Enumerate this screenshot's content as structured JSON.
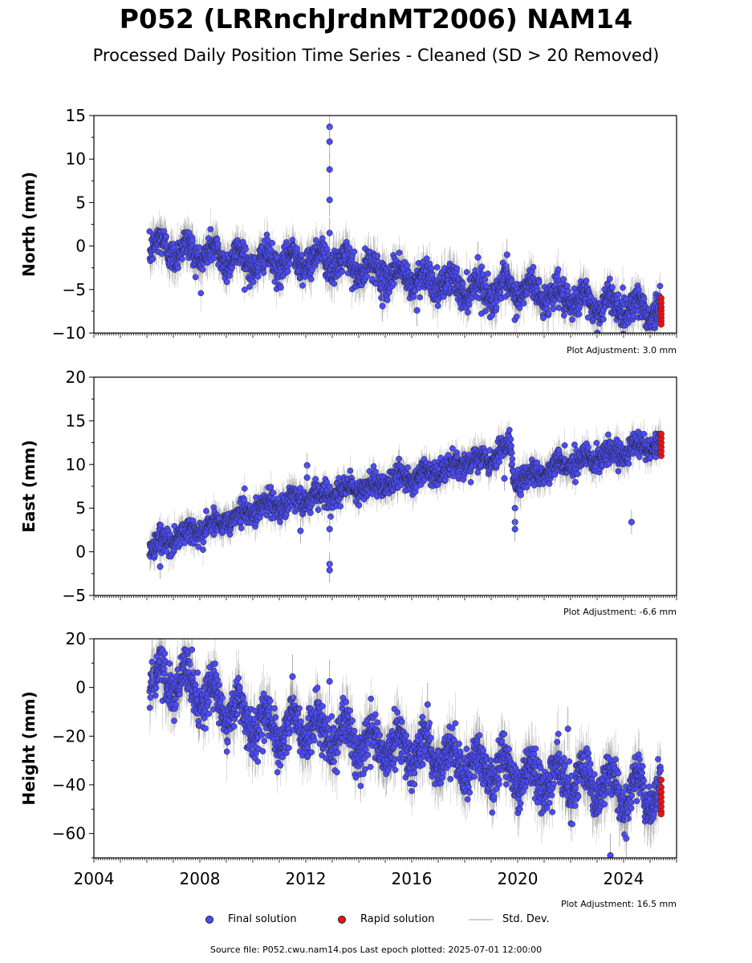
{
  "title": "P052 (LRRnchJrdnMT2006) NAM14",
  "subtitle": "Processed Daily Position Time Series - Cleaned (SD > 20 Removed)",
  "footer": "Source file: P052.cwu.nam14.pos  Last epoch plotted: 2025-07-01 12:00:00",
  "legend": {
    "final": "Final solution",
    "rapid": "Rapid solution",
    "std": "Std. Dev."
  },
  "colors": {
    "final": "#4b4bf5",
    "rapid": "#ee1111",
    "std": "#c8c8c8",
    "edge": "#222222"
  },
  "chart_data": [
    {
      "type": "scatter",
      "ylabel": "North (mm)",
      "ylim": [
        -10,
        15
      ],
      "yticks": [
        -10,
        -5,
        0,
        5,
        10,
        15
      ],
      "xlim": [
        2004.0,
        2026.0
      ],
      "adjustment": "Plot Adjustment: 3.0 mm",
      "trend": [
        [
          2006.1,
          0.0
        ],
        [
          2007.0,
          -0.3
        ],
        [
          2008.0,
          -0.8
        ],
        [
          2009.0,
          -1.2
        ],
        [
          2010.0,
          -1.8
        ],
        [
          2011.0,
          -1.9
        ],
        [
          2012.0,
          -1.5
        ],
        [
          2012.6,
          -1.4
        ],
        [
          2013.0,
          -1.7
        ],
        [
          2014.0,
          -2.6
        ],
        [
          2015.0,
          -3.2
        ],
        [
          2016.0,
          -3.6
        ],
        [
          2017.0,
          -4.2
        ],
        [
          2018.0,
          -4.8
        ],
        [
          2019.0,
          -5.1
        ],
        [
          2020.0,
          -5.0
        ],
        [
          2021.0,
          -5.4
        ],
        [
          2022.0,
          -6.2
        ],
        [
          2023.0,
          -6.6
        ],
        [
          2024.0,
          -6.9
        ],
        [
          2025.4,
          -7.4
        ]
      ],
      "seasonal_amp": 1.0,
      "noise": 0.9,
      "outliers": [
        [
          2012.9,
          13.7
        ],
        [
          2012.9,
          12.0
        ],
        [
          2012.9,
          8.8
        ],
        [
          2012.9,
          5.3
        ],
        [
          2012.9,
          1.5
        ],
        [
          2019.6,
          -1.0
        ],
        [
          2018.5,
          -1.3
        ],
        [
          2016.2,
          -7.4
        ],
        [
          2014.9,
          -6.9
        ]
      ],
      "rapid": [
        [
          2025.42,
          -6.0
        ],
        [
          2025.42,
          -6.5
        ],
        [
          2025.42,
          -7.0
        ],
        [
          2025.42,
          -7.4
        ],
        [
          2025.42,
          -7.8
        ],
        [
          2025.42,
          -8.2
        ],
        [
          2025.42,
          -8.6
        ],
        [
          2025.42,
          -9.0
        ]
      ]
    },
    {
      "type": "scatter",
      "ylabel": "East (mm)",
      "ylim": [
        -5,
        20
      ],
      "yticks": [
        -5,
        0,
        5,
        10,
        15,
        20
      ],
      "xlim": [
        2004.0,
        2026.0
      ],
      "adjustment": "Plot Adjustment: -6.6 mm",
      "trend": [
        [
          2006.1,
          0.5
        ],
        [
          2007.0,
          1.5
        ],
        [
          2008.0,
          2.6
        ],
        [
          2009.0,
          3.6
        ],
        [
          2010.0,
          4.8
        ],
        [
          2011.0,
          5.5
        ],
        [
          2012.0,
          6.0
        ],
        [
          2013.0,
          6.6
        ],
        [
          2014.0,
          7.3
        ],
        [
          2015.0,
          7.9
        ],
        [
          2016.0,
          8.5
        ],
        [
          2017.0,
          9.3
        ],
        [
          2018.0,
          10.0
        ],
        [
          2019.0,
          11.0
        ],
        [
          2019.75,
          12.0
        ],
        [
          2019.85,
          8.2
        ],
        [
          2020.5,
          8.6
        ],
        [
          2021.0,
          9.3
        ],
        [
          2022.0,
          10.2
        ],
        [
          2023.0,
          10.8
        ],
        [
          2024.0,
          11.5
        ],
        [
          2025.4,
          12.3
        ]
      ],
      "seasonal_amp": 0.5,
      "noise": 0.7,
      "outliers": [
        [
          2012.05,
          9.9
        ],
        [
          2012.05,
          8.5
        ],
        [
          2011.8,
          2.4
        ],
        [
          2012.9,
          -1.4
        ],
        [
          2012.9,
          -2.1
        ],
        [
          2012.9,
          2.6
        ],
        [
          2019.9,
          5.0
        ],
        [
          2019.9,
          3.4
        ],
        [
          2019.9,
          2.6
        ],
        [
          2024.3,
          3.4
        ],
        [
          2006.5,
          -1.7
        ],
        [
          2019.5,
          8.4
        ]
      ],
      "rapid": [
        [
          2025.42,
          11.0
        ],
        [
          2025.42,
          11.5
        ],
        [
          2025.42,
          12.0
        ],
        [
          2025.42,
          12.5
        ],
        [
          2025.42,
          13.0
        ],
        [
          2025.42,
          13.5
        ]
      ]
    },
    {
      "type": "scatter",
      "ylabel": "Height (mm)",
      "ylim": [
        -70,
        20
      ],
      "yticks": [
        -60,
        -40,
        -20,
        0,
        20
      ],
      "xlim": [
        2004.0,
        2026.0
      ],
      "xticks": [
        2004,
        2008,
        2012,
        2016,
        2020,
        2024
      ],
      "adjustment": "Plot Adjustment: 16.5 mm",
      "trend": [
        [
          2006.1,
          2.0
        ],
        [
          2007.0,
          3.0
        ],
        [
          2008.0,
          -2.0
        ],
        [
          2009.0,
          -8.0
        ],
        [
          2010.0,
          -14.0
        ],
        [
          2011.0,
          -18.0
        ],
        [
          2012.0,
          -16.0
        ],
        [
          2013.0,
          -19.0
        ],
        [
          2014.0,
          -22.0
        ],
        [
          2015.0,
          -24.0
        ],
        [
          2016.0,
          -25.0
        ],
        [
          2017.0,
          -28.0
        ],
        [
          2018.0,
          -31.0
        ],
        [
          2019.0,
          -33.0
        ],
        [
          2020.0,
          -36.0
        ],
        [
          2021.0,
          -37.0
        ],
        [
          2022.0,
          -38.0
        ],
        [
          2023.0,
          -40.0
        ],
        [
          2024.0,
          -42.0
        ],
        [
          2025.4,
          -44.0
        ]
      ],
      "seasonal_amp": 6.5,
      "noise": 4.5,
      "outliers": [
        [
          2011.5,
          4.5
        ],
        [
          2012.9,
          2.5
        ],
        [
          2016.6,
          -7.0
        ],
        [
          2021.9,
          -17.0
        ],
        [
          2024.1,
          -62.0
        ],
        [
          2023.5,
          -69.0
        ],
        [
          2006.2,
          10.5
        ],
        [
          2007.7,
          15.5
        ]
      ],
      "rapid": [
        [
          2025.42,
          -38.0
        ],
        [
          2025.42,
          -41.0
        ],
        [
          2025.42,
          -43.0
        ],
        [
          2025.42,
          -45.0
        ],
        [
          2025.42,
          -47.0
        ],
        [
          2025.42,
          -49.0
        ],
        [
          2025.42,
          -51.0
        ],
        [
          2025.42,
          -52.0
        ]
      ]
    }
  ]
}
